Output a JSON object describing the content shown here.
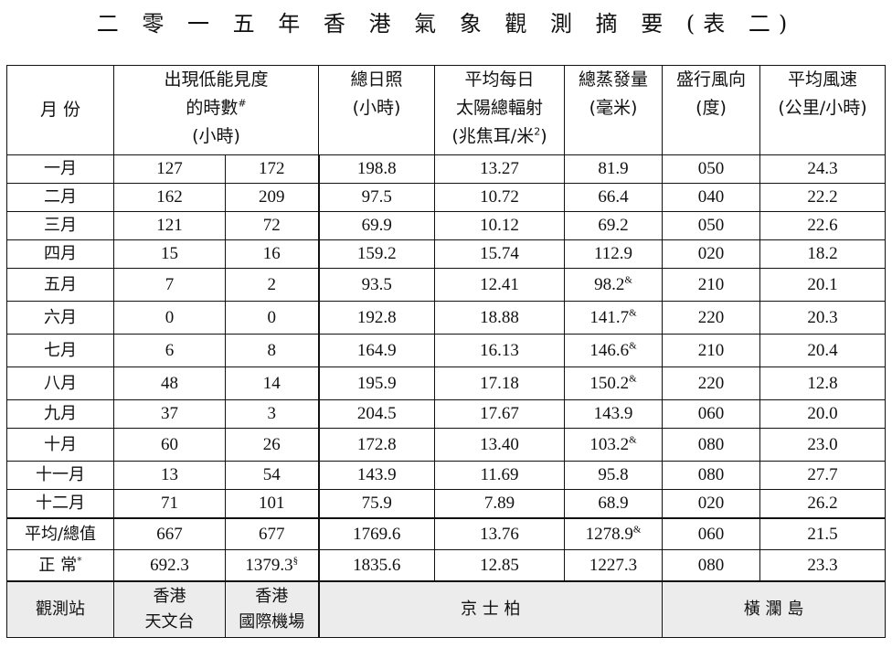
{
  "title": "二 零 一 五 年 香 港 氣 象 觀 測 摘 要 (表 二)",
  "headers": {
    "month": "月 份",
    "low_vis": {
      "line1": "出現低能見度",
      "line2": "的時數",
      "mark": "#",
      "line3": "(小時)"
    },
    "sunshine": {
      "line1": "總日照",
      "line2": "(小時)"
    },
    "radiation": {
      "line1": "平均每日",
      "line2": "太陽總輻射",
      "line3a": "(兆焦耳/米",
      "sup": "2",
      "line3b": ")"
    },
    "evaporation": {
      "line1": "總蒸發量",
      "line2": "(毫米)"
    },
    "wind_dir": {
      "line1": "盛行風向",
      "line2": "(度)"
    },
    "wind_speed": {
      "line1": "平均風速",
      "line2": "(公里/小時)"
    }
  },
  "rows": [
    {
      "month": "一月",
      "vis_hko": "127",
      "vis_airport": "172",
      "sunshine": "198.8",
      "radiation": "13.27",
      "evap": "81.9",
      "evap_mark": "",
      "wind_dir": "050",
      "wind_speed": "24.3"
    },
    {
      "month": "二月",
      "vis_hko": "162",
      "vis_airport": "209",
      "sunshine": "97.5",
      "radiation": "10.72",
      "evap": "66.4",
      "evap_mark": "",
      "wind_dir": "040",
      "wind_speed": "22.2"
    },
    {
      "month": "三月",
      "vis_hko": "121",
      "vis_airport": "72",
      "sunshine": "69.9",
      "radiation": "10.12",
      "evap": "69.2",
      "evap_mark": "",
      "wind_dir": "050",
      "wind_speed": "22.6"
    },
    {
      "month": "四月",
      "vis_hko": "15",
      "vis_airport": "16",
      "sunshine": "159.2",
      "radiation": "15.74",
      "evap": "112.9",
      "evap_mark": "",
      "wind_dir": "020",
      "wind_speed": "18.2"
    },
    {
      "month": "五月",
      "vis_hko": "7",
      "vis_airport": "2",
      "sunshine": "93.5",
      "radiation": "12.41",
      "evap": "98.2",
      "evap_mark": "&",
      "wind_dir": "210",
      "wind_speed": "20.1"
    },
    {
      "month": "六月",
      "vis_hko": "0",
      "vis_airport": "0",
      "sunshine": "192.8",
      "radiation": "18.88",
      "evap": "141.7",
      "evap_mark": "&",
      "wind_dir": "220",
      "wind_speed": "20.3"
    },
    {
      "month": "七月",
      "vis_hko": "6",
      "vis_airport": "8",
      "sunshine": "164.9",
      "radiation": "16.13",
      "evap": "146.6",
      "evap_mark": "&",
      "wind_dir": "210",
      "wind_speed": "20.4"
    },
    {
      "month": "八月",
      "vis_hko": "48",
      "vis_airport": "14",
      "sunshine": "195.9",
      "radiation": "17.18",
      "evap": "150.2",
      "evap_mark": "&",
      "wind_dir": "220",
      "wind_speed": "12.8"
    },
    {
      "month": "九月",
      "vis_hko": "37",
      "vis_airport": "3",
      "sunshine": "204.5",
      "radiation": "17.67",
      "evap": "143.9",
      "evap_mark": "",
      "wind_dir": "060",
      "wind_speed": "20.0"
    },
    {
      "month": "十月",
      "vis_hko": "60",
      "vis_airport": "26",
      "sunshine": "172.8",
      "radiation": "13.40",
      "evap": "103.2",
      "evap_mark": "&",
      "wind_dir": "080",
      "wind_speed": "23.0"
    },
    {
      "month": "十一月",
      "vis_hko": "13",
      "vis_airport": "54",
      "sunshine": "143.9",
      "radiation": "11.69",
      "evap": "95.8",
      "evap_mark": "",
      "wind_dir": "080",
      "wind_speed": "27.7"
    },
    {
      "month": "十二月",
      "vis_hko": "71",
      "vis_airport": "101",
      "sunshine": "75.9",
      "radiation": "7.89",
      "evap": "68.9",
      "evap_mark": "",
      "wind_dir": "020",
      "wind_speed": "26.2"
    }
  ],
  "summary": {
    "label": "平均/總值",
    "vis_hko": "667",
    "vis_airport": "677",
    "sunshine": "1769.6",
    "radiation": "13.76",
    "evap": "1278.9",
    "evap_mark": "&",
    "wind_dir": "060",
    "wind_speed": "21.5"
  },
  "normal": {
    "label": "正 常",
    "label_mark": "*",
    "vis_hko": "692.3",
    "vis_airport": "1379.3",
    "vis_airport_mark": "§",
    "sunshine": "1835.6",
    "radiation": "12.85",
    "evap": "1227.3",
    "wind_dir": "080",
    "wind_speed": "23.3"
  },
  "stations": {
    "label": "觀測站",
    "hko": {
      "line1": "香港",
      "line2": "天文台"
    },
    "airport": {
      "line1": "香港",
      "line2": "國際機場"
    },
    "kings_park": "京 士 柏",
    "waglan": "橫 瀾 島"
  }
}
